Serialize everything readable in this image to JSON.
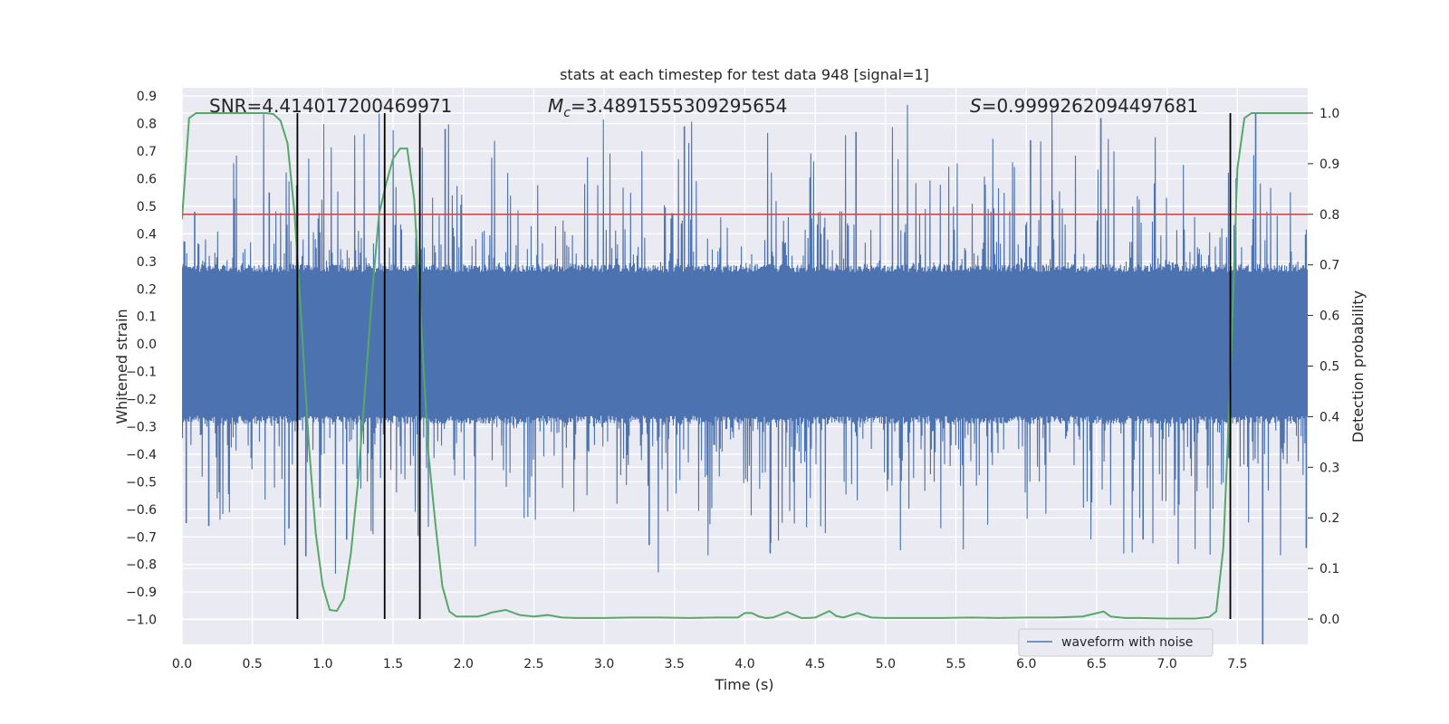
{
  "chart_data": {
    "type": "line",
    "title": "stats at each timestep for test data 948 [signal=1]",
    "xlabel": "Time (s)",
    "ylabel_left": "Whitened strain",
    "ylabel_right": "Detection probability",
    "xlim": [
      0.0,
      8.0
    ],
    "ylim_left": [
      -1.09,
      0.93
    ],
    "ylim_right": [
      -0.05,
      1.05
    ],
    "x_ticks": [
      "0.0",
      "0.5",
      "1.0",
      "1.5",
      "2.0",
      "2.5",
      "3.0",
      "3.5",
      "4.0",
      "4.5",
      "5.0",
      "5.5",
      "6.0",
      "6.5",
      "7.0",
      "7.5"
    ],
    "y_ticks_left": [
      "0.9",
      "0.8",
      "0.7",
      "0.6",
      "0.5",
      "0.4",
      "0.3",
      "0.2",
      "0.1",
      "0.0",
      "−0.1",
      "−0.2",
      "−0.3",
      "−0.4",
      "−0.5",
      "−0.6",
      "−0.7",
      "−0.8",
      "−0.9",
      "−1.0"
    ],
    "y_ticks_right": [
      "0.0",
      "0.1",
      "0.2",
      "0.3",
      "0.4",
      "0.5",
      "0.6",
      "0.7",
      "0.8",
      "0.9",
      "1.0"
    ],
    "grid": true,
    "background": "#eaeaf2",
    "annotations": {
      "snr": "SNR=4.414017200469971",
      "mc_symbol": "M",
      "mc_sub": "c",
      "mc_value": "=3.4891555309295654",
      "s_symbol": "S",
      "s_value": "=0.9999262094497681"
    },
    "legend": {
      "label": "waveform with noise",
      "position": "lower-right"
    },
    "threshold": {
      "value": 0.8,
      "axis": "right",
      "color": "#c44e52"
    },
    "vertical_lines": [
      0.82,
      1.44,
      1.69,
      7.45
    ],
    "series": [
      {
        "name": "waveform with noise",
        "axis": "left",
        "color": "#4c72b0",
        "x_range": [
          0.0,
          8.0
        ],
        "samples": 2400,
        "envelope": 0.29,
        "spike_limit": 0.88,
        "notable_spikes": [
          {
            "x": 0.03,
            "y": -0.65
          },
          {
            "x": 0.09,
            "y": 0.48
          },
          {
            "x": 0.19,
            "y": -0.66
          },
          {
            "x": 0.62,
            "y": 0.55
          },
          {
            "x": 0.76,
            "y": -0.67
          },
          {
            "x": 0.88,
            "y": -0.77
          },
          {
            "x": 1.17,
            "y": -0.71
          },
          {
            "x": 1.44,
            "y": 0.73
          },
          {
            "x": 1.87,
            "y": 0.78
          },
          {
            "x": 3.32,
            "y": -0.73
          },
          {
            "x": 3.57,
            "y": 0.79
          },
          {
            "x": 4.18,
            "y": -0.76
          },
          {
            "x": 4.79,
            "y": 0.77
          },
          {
            "x": 6.03,
            "y": 0.74
          },
          {
            "x": 6.53,
            "y": 0.82
          },
          {
            "x": 6.83,
            "y": -0.71
          },
          {
            "x": 7.63,
            "y": 0.84
          },
          {
            "x": 7.68,
            "y": -1.09
          },
          {
            "x": 7.99,
            "y": -0.74
          }
        ]
      },
      {
        "name": "",
        "axis": "right",
        "color": "#55a868",
        "x": [
          0.0,
          0.05,
          0.1,
          0.2,
          0.3,
          0.4,
          0.5,
          0.6,
          0.65,
          0.7,
          0.75,
          0.8,
          0.85,
          0.9,
          0.95,
          1.0,
          1.05,
          1.1,
          1.15,
          1.2,
          1.25,
          1.3,
          1.35,
          1.4,
          1.45,
          1.5,
          1.55,
          1.6,
          1.65,
          1.7,
          1.75,
          1.8,
          1.85,
          1.9,
          1.95,
          2.0,
          2.1,
          2.15,
          2.2,
          2.3,
          2.4,
          2.5,
          2.6,
          2.7,
          2.8,
          3.0,
          3.2,
          3.4,
          3.6,
          3.8,
          3.95,
          4.0,
          4.05,
          4.1,
          4.15,
          4.2,
          4.3,
          4.4,
          4.45,
          4.5,
          4.6,
          4.65,
          4.7,
          4.8,
          4.9,
          5.0,
          5.2,
          5.4,
          5.6,
          5.8,
          6.0,
          6.2,
          6.4,
          6.55,
          6.6,
          6.7,
          6.8,
          7.0,
          7.2,
          7.3,
          7.35,
          7.4,
          7.45,
          7.5,
          7.55,
          7.6,
          7.7,
          7.8,
          8.0
        ],
        "y": [
          0.79,
          0.99,
          1.0,
          1.0,
          1.0,
          1.0,
          1.0,
          1.0,
          0.998,
          0.985,
          0.94,
          0.8,
          0.58,
          0.35,
          0.17,
          0.065,
          0.018,
          0.016,
          0.04,
          0.13,
          0.27,
          0.45,
          0.64,
          0.8,
          0.86,
          0.91,
          0.93,
          0.93,
          0.83,
          0.58,
          0.33,
          0.19,
          0.065,
          0.015,
          0.005,
          0.005,
          0.005,
          0.008,
          0.013,
          0.018,
          0.008,
          0.005,
          0.008,
          0.003,
          0.002,
          0.002,
          0.003,
          0.003,
          0.002,
          0.003,
          0.003,
          0.012,
          0.012,
          0.005,
          0.002,
          0.003,
          0.014,
          0.002,
          0.002,
          0.003,
          0.016,
          0.006,
          0.003,
          0.012,
          0.003,
          0.002,
          0.002,
          0.002,
          0.003,
          0.002,
          0.003,
          0.003,
          0.005,
          0.015,
          0.005,
          0.002,
          0.002,
          0.001,
          0.001,
          0.004,
          0.015,
          0.14,
          0.47,
          0.89,
          0.99,
          1.0,
          1.0,
          1.0,
          1.0
        ]
      }
    ]
  }
}
